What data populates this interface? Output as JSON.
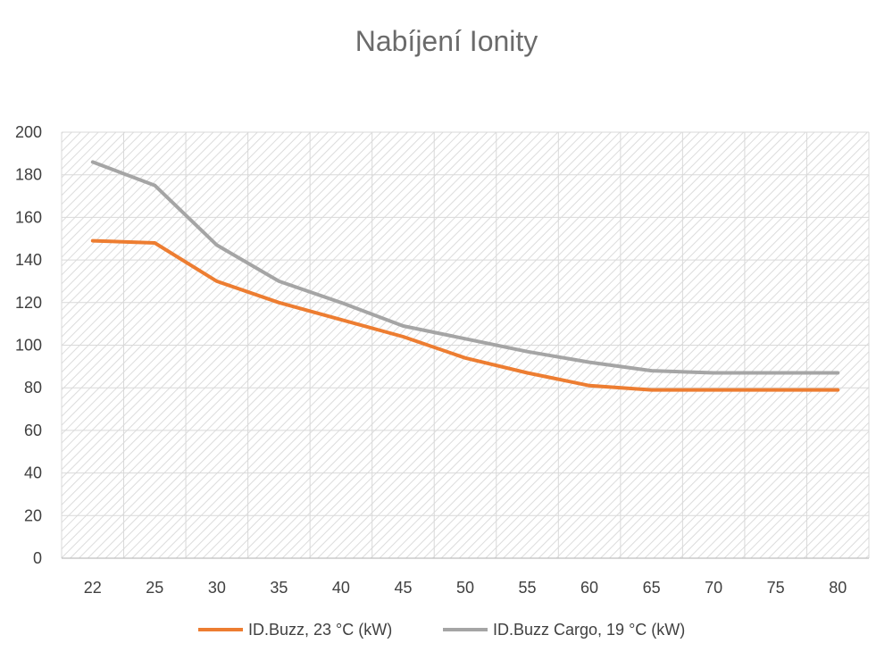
{
  "chart_data": {
    "type": "line",
    "title": "Nabíjení Ionity",
    "xlabel": "",
    "ylabel": "",
    "categories": [
      "22",
      "25",
      "30",
      "35",
      "40",
      "45",
      "50",
      "55",
      "60",
      "65",
      "70",
      "75",
      "80"
    ],
    "ylim": [
      0,
      200
    ],
    "yticks": [
      "0",
      "20",
      "40",
      "60",
      "80",
      "100",
      "120",
      "140",
      "160",
      "180",
      "200"
    ],
    "grid": true,
    "legend_position": "bottom",
    "series": [
      {
        "name": "ID.Buzz, 23 °C (kW)",
        "color": "#ED7D31",
        "values": [
          149,
          148,
          130,
          120,
          112,
          104,
          94,
          87,
          81,
          79,
          79,
          79,
          79
        ]
      },
      {
        "name": "ID.Buzz Cargo, 19 °C (kW)",
        "color": "#A5A5A5",
        "values": [
          186,
          175,
          147,
          130,
          120,
          109,
          103,
          97,
          92,
          88,
          87,
          87,
          87
        ]
      }
    ]
  }
}
